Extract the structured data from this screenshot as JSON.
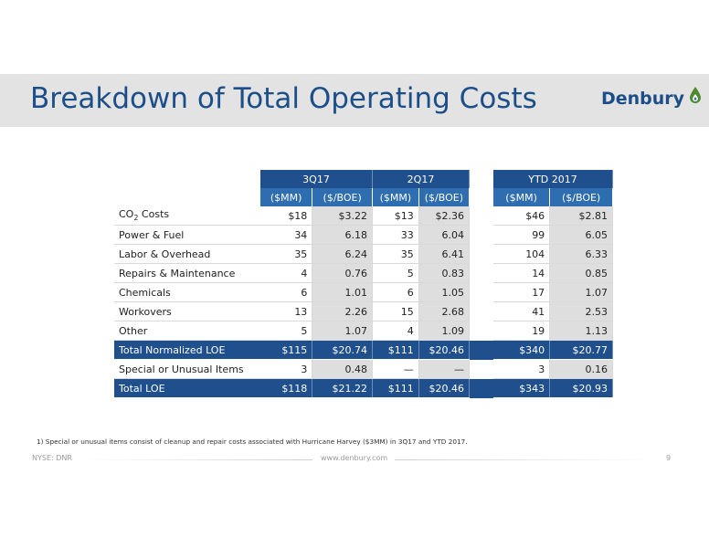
{
  "slide": {
    "title": "Breakdown of Total Operating Costs",
    "logo_text": "Denbury",
    "brand_color": "#1c4f8a"
  },
  "table": {
    "groups": [
      "3Q17",
      "2Q17",
      "YTD 2017"
    ],
    "units": [
      "($MM)",
      "($/BOE)",
      "($MM)",
      "($/BOE)",
      "($MM)",
      "($/BOE)"
    ],
    "rows": [
      {
        "label": "CO",
        "label_sub": "2",
        "label_after": " Costs",
        "q3_mm": "$18",
        "q3_boe": "$3.22",
        "q2_mm": "$13",
        "q2_boe": "$2.36",
        "ytd_mm": "$46",
        "ytd_boe": "$2.81"
      },
      {
        "label": "Power & Fuel",
        "q3_mm": "34",
        "q3_boe": "6.18",
        "q2_mm": "33",
        "q2_boe": "6.04",
        "ytd_mm": "99",
        "ytd_boe": "6.05"
      },
      {
        "label": "Labor & Overhead",
        "q3_mm": "35",
        "q3_boe": "6.24",
        "q2_mm": "35",
        "q2_boe": "6.41",
        "ytd_mm": "104",
        "ytd_boe": "6.33"
      },
      {
        "label": "Repairs & Maintenance",
        "q3_mm": "4",
        "q3_boe": "0.76",
        "q2_mm": "5",
        "q2_boe": "0.83",
        "ytd_mm": "14",
        "ytd_boe": "0.85"
      },
      {
        "label": "Chemicals",
        "q3_mm": "6",
        "q3_boe": "1.01",
        "q2_mm": "6",
        "q2_boe": "1.05",
        "ytd_mm": "17",
        "ytd_boe": "1.07"
      },
      {
        "label": "Workovers",
        "q3_mm": "13",
        "q3_boe": "2.26",
        "q2_mm": "15",
        "q2_boe": "2.68",
        "ytd_mm": "41",
        "ytd_boe": "2.53"
      },
      {
        "label": "Other",
        "q3_mm": "5",
        "q3_boe": "1.07",
        "q2_mm": "4",
        "q2_boe": "1.09",
        "ytd_mm": "19",
        "ytd_boe": "1.13"
      }
    ],
    "total_normalized": {
      "label": "Total Normalized LOE",
      "q3_mm": "$115",
      "q3_boe": "$20.74",
      "q2_mm": "$111",
      "q2_boe": "$20.46",
      "ytd_mm": "$340",
      "ytd_boe": "$20.77"
    },
    "special": {
      "label": "Special or Unusual Items",
      "q3_mm": "3",
      "q3_boe": "0.48",
      "q2_mm": "—",
      "q2_boe": "—",
      "ytd_mm": "3",
      "ytd_boe": "0.16"
    },
    "total": {
      "label": "Total LOE",
      "q3_mm": "$118",
      "q3_boe": "$21.22",
      "q2_mm": "$111",
      "q2_boe": "$20.46",
      "ytd_mm": "$343",
      "ytd_boe": "$20.93"
    }
  },
  "footnote": "1) Special or unusual items consist of cleanup and repair costs associated with Hurricane Harvey ($3MM) in 3Q17 and YTD 2017.",
  "footer": {
    "left": "NYSE: DNR",
    "center": "www.denbury.com",
    "page": "9"
  }
}
